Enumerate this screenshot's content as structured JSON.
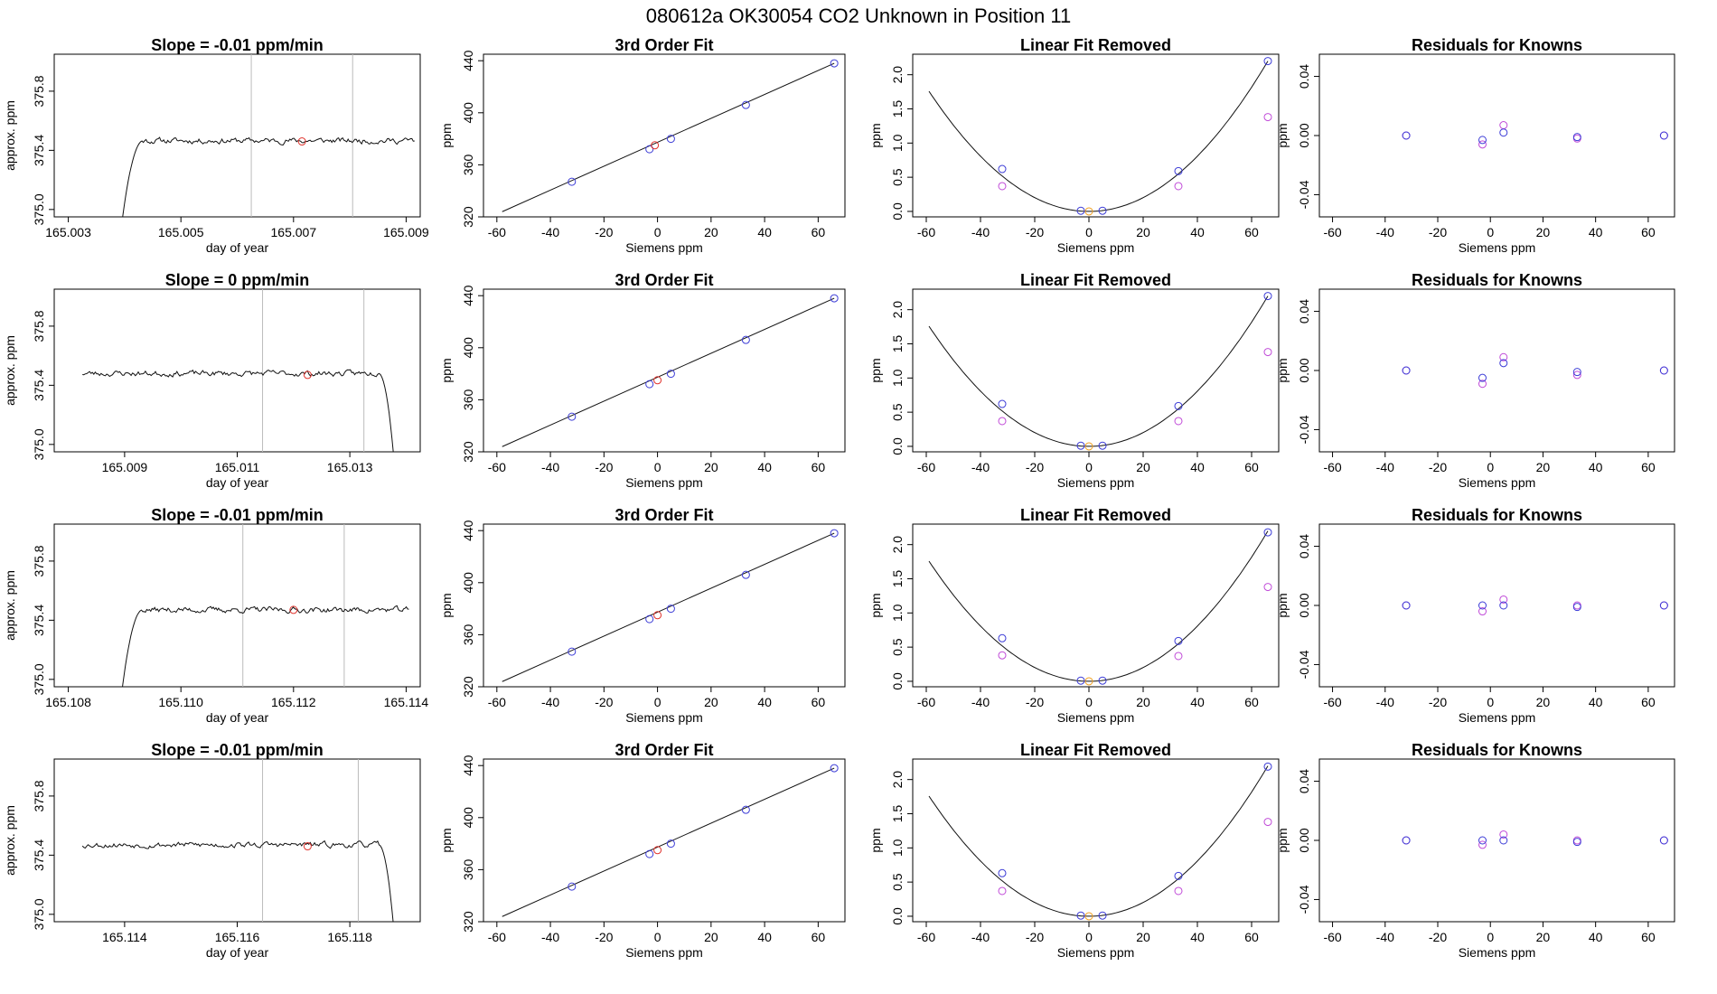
{
  "figure_title": "080612a     OK30054   CO2 Unknown in Position  11",
  "colors": {
    "unknown": "#e0332d",
    "known": "#3b3bd6",
    "raw_known": "#c04ad8",
    "unknown_raw": "#f0a020",
    "line": "#111111",
    "grid_vertical": "#bbbbbb"
  },
  "chart_data": [
    {
      "type": "line",
      "panel": "time-series",
      "row": 0,
      "title": "Slope =  -0.01  ppm/min",
      "xlabel": "day of year",
      "ylabel": "approx. ppm",
      "xlim": [
        165.00275,
        165.00925
      ],
      "ylim": [
        374.95,
        376.05
      ],
      "xticks": [
        165.003,
        165.005,
        165.007,
        165.009
      ],
      "xtick_labels": [
        "165.003",
        "165.005",
        "165.007",
        "165.009"
      ],
      "yticks": [
        375.0,
        375.4,
        375.8
      ],
      "ytick_labels": [
        "375.0",
        "375.4",
        "375.8"
      ],
      "vlines": [
        165.00625,
        165.00805
      ],
      "marker": {
        "x": 165.00715,
        "y": 375.46
      },
      "trace": {
        "x_start": 165.00385,
        "x_end": 165.00915,
        "drop_side": "start",
        "level": 375.465,
        "noise": 0.015,
        "seed": 11
      }
    },
    {
      "type": "line",
      "panel": "time-series",
      "row": 1,
      "title": "Slope =  0  ppm/min",
      "xlabel": "day of year",
      "ylabel": "approx. ppm",
      "xlim": [
        165.00775,
        165.01425
      ],
      "ylim": [
        374.95,
        376.05
      ],
      "xticks": [
        165.009,
        165.011,
        165.013
      ],
      "xtick_labels": [
        "165.009",
        "165.011",
        "165.013"
      ],
      "yticks": [
        375.0,
        375.4,
        375.8
      ],
      "ytick_labels": [
        "375.0",
        "375.4",
        "375.8"
      ],
      "vlines": [
        165.01145,
        165.01325
      ],
      "marker": {
        "x": 165.01225,
        "y": 375.47
      },
      "trace": {
        "x_start": 165.00825,
        "x_end": 165.01385,
        "drop_side": "end",
        "level": 375.48,
        "noise": 0.015,
        "seed": 23
      }
    },
    {
      "type": "line",
      "panel": "time-series",
      "row": 2,
      "title": "Slope =  -0.01  ppm/min",
      "xlabel": "day of year",
      "ylabel": "approx. ppm",
      "xlim": [
        165.10775,
        165.11425
      ],
      "ylim": [
        374.95,
        376.05
      ],
      "xticks": [
        165.108,
        165.11,
        165.112,
        165.114
      ],
      "xtick_labels": [
        "165.108",
        "165.110",
        "165.112",
        "165.114"
      ],
      "yticks": [
        375.0,
        375.4,
        375.8
      ],
      "ytick_labels": [
        "375.0",
        "375.4",
        "375.8"
      ],
      "vlines": [
        165.1111,
        165.1129
      ],
      "marker": {
        "x": 165.112,
        "y": 375.47
      },
      "trace": {
        "x_start": 165.10885,
        "x_end": 165.11405,
        "drop_side": "start",
        "level": 375.47,
        "noise": 0.015,
        "seed": 37
      }
    },
    {
      "type": "line",
      "panel": "time-series",
      "row": 3,
      "title": "Slope =  -0.01  ppm/min",
      "xlabel": "day of year",
      "ylabel": "approx. ppm",
      "xlim": [
        165.11275,
        165.11925
      ],
      "ylim": [
        374.95,
        376.05
      ],
      "xticks": [
        165.114,
        165.116,
        165.118
      ],
      "xtick_labels": [
        "165.114",
        "165.116",
        "165.118"
      ],
      "yticks": [
        375.0,
        375.4,
        375.8
      ],
      "ytick_labels": [
        "375.0",
        "375.4",
        "375.8"
      ],
      "vlines": [
        165.11645,
        165.11815
      ],
      "marker": {
        "x": 165.11725,
        "y": 375.46
      },
      "trace": {
        "x_start": 165.11325,
        "x_end": 165.11885,
        "drop_side": "end",
        "level": 375.47,
        "noise": 0.015,
        "seed": 53
      }
    },
    {
      "type": "scatter",
      "panel": "cubic-fit",
      "row": 0,
      "title": "3rd Order Fit",
      "xlabel": "Siemens ppm",
      "ylabel": "ppm",
      "xlim": [
        -65,
        70
      ],
      "ylim": [
        320,
        445
      ],
      "xticks": [
        -60,
        -40,
        -20,
        0,
        20,
        40,
        60
      ],
      "xtick_labels": [
        "-60",
        "-40",
        "-20",
        "0",
        "20",
        "40",
        "60"
      ],
      "yticks": [
        320,
        360,
        400,
        440
      ],
      "ytick_labels": [
        "320",
        "360",
        "400",
        "440"
      ],
      "fit_line": {
        "x0": -58,
        "y0": 324,
        "x1": 66,
        "y1": 438
      },
      "known_points": [
        {
          "x": -32,
          "y": 347
        },
        {
          "x": -3,
          "y": 372
        },
        {
          "x": 5,
          "y": 380
        },
        {
          "x": 33,
          "y": 406
        },
        {
          "x": 66,
          "y": 438
        }
      ],
      "unknown_point": {
        "x": -1,
        "y": 375
      }
    },
    {
      "type": "scatter",
      "panel": "cubic-fit",
      "row": 1,
      "title": "3rd Order Fit",
      "xlabel": "Siemens ppm",
      "ylabel": "ppm",
      "xlim": [
        -65,
        70
      ],
      "ylim": [
        320,
        445
      ],
      "xticks": [
        -60,
        -40,
        -20,
        0,
        20,
        40,
        60
      ],
      "xtick_labels": [
        "-60",
        "-40",
        "-20",
        "0",
        "20",
        "40",
        "60"
      ],
      "yticks": [
        320,
        360,
        400,
        440
      ],
      "ytick_labels": [
        "320",
        "360",
        "400",
        "440"
      ],
      "fit_line": {
        "x0": -58,
        "y0": 324,
        "x1": 66,
        "y1": 438
      },
      "known_points": [
        {
          "x": -32,
          "y": 347
        },
        {
          "x": -3,
          "y": 372
        },
        {
          "x": 5,
          "y": 380
        },
        {
          "x": 33,
          "y": 406
        },
        {
          "x": 66,
          "y": 438
        }
      ],
      "unknown_point": {
        "x": 0,
        "y": 375
      }
    },
    {
      "type": "scatter",
      "panel": "cubic-fit",
      "row": 2,
      "title": "3rd Order Fit",
      "xlabel": "Siemens ppm",
      "ylabel": "ppm",
      "xlim": [
        -65,
        70
      ],
      "ylim": [
        320,
        445
      ],
      "xticks": [
        -60,
        -40,
        -20,
        0,
        20,
        40,
        60
      ],
      "xtick_labels": [
        "-60",
        "-40",
        "-20",
        "0",
        "20",
        "40",
        "60"
      ],
      "yticks": [
        320,
        360,
        400,
        440
      ],
      "ytick_labels": [
        "320",
        "360",
        "400",
        "440"
      ],
      "fit_line": {
        "x0": -58,
        "y0": 324,
        "x1": 66,
        "y1": 438
      },
      "known_points": [
        {
          "x": -32,
          "y": 347
        },
        {
          "x": -3,
          "y": 372
        },
        {
          "x": 5,
          "y": 380
        },
        {
          "x": 33,
          "y": 406
        },
        {
          "x": 66,
          "y": 438
        }
      ],
      "unknown_point": {
        "x": 0,
        "y": 375
      }
    },
    {
      "type": "scatter",
      "panel": "cubic-fit",
      "row": 3,
      "title": "3rd Order Fit",
      "xlabel": "Siemens ppm",
      "ylabel": "ppm",
      "xlim": [
        -65,
        70
      ],
      "ylim": [
        320,
        445
      ],
      "xticks": [
        -60,
        -40,
        -20,
        0,
        20,
        40,
        60
      ],
      "xtick_labels": [
        "-60",
        "-40",
        "-20",
        "0",
        "20",
        "40",
        "60"
      ],
      "yticks": [
        320,
        360,
        400,
        440
      ],
      "ytick_labels": [
        "320",
        "360",
        "400",
        "440"
      ],
      "fit_line": {
        "x0": -58,
        "y0": 324,
        "x1": 66,
        "y1": 438
      },
      "known_points": [
        {
          "x": -32,
          "y": 347
        },
        {
          "x": -3,
          "y": 372
        },
        {
          "x": 5,
          "y": 380
        },
        {
          "x": 33,
          "y": 406
        },
        {
          "x": 66,
          "y": 438
        }
      ],
      "unknown_point": {
        "x": 0,
        "y": 375
      }
    },
    {
      "type": "scatter",
      "panel": "linear-removed",
      "row": 0,
      "title": "Linear Fit Removed",
      "xlabel": "Siemens ppm",
      "ylabel": "ppm",
      "xlim": [
        -65,
        70
      ],
      "ylim": [
        -0.08,
        2.3
      ],
      "xticks": [
        -60,
        -40,
        -20,
        0,
        20,
        40,
        60
      ],
      "xtick_labels": [
        "-60",
        "-40",
        "-20",
        "0",
        "20",
        "40",
        "60"
      ],
      "yticks": [
        0.0,
        0.5,
        1.0,
        1.5,
        2.0
      ],
      "ytick_labels": [
        "0.0",
        "0.5",
        "1.0",
        "1.5",
        "2.0"
      ],
      "curve": {
        "a": 0.000505,
        "b": 0.0,
        "x_min": -59,
        "x_max": 66
      },
      "known_points": [
        {
          "x": -32,
          "y": 0.62
        },
        {
          "x": -3,
          "y": 0.01
        },
        {
          "x": 5,
          "y": 0.01
        },
        {
          "x": 33,
          "y": 0.59
        },
        {
          "x": 66,
          "y": 2.2
        }
      ],
      "raw_points": [
        {
          "x": -32,
          "y": 0.37
        },
        {
          "x": 33,
          "y": 0.37
        },
        {
          "x": 66,
          "y": 1.38
        }
      ],
      "unknown_point": {
        "x": 0,
        "y": 0.0
      }
    },
    {
      "type": "scatter",
      "panel": "linear-removed",
      "row": 1,
      "title": "Linear Fit Removed",
      "xlabel": "Siemens ppm",
      "ylabel": "ppm",
      "xlim": [
        -65,
        70
      ],
      "ylim": [
        -0.08,
        2.3
      ],
      "xticks": [
        -60,
        -40,
        -20,
        0,
        20,
        40,
        60
      ],
      "xtick_labels": [
        "-60",
        "-40",
        "-20",
        "0",
        "20",
        "40",
        "60"
      ],
      "yticks": [
        0.0,
        0.5,
        1.0,
        1.5,
        2.0
      ],
      "ytick_labels": [
        "0.0",
        "0.5",
        "1.0",
        "1.5",
        "2.0"
      ],
      "curve": {
        "a": 0.000505,
        "b": 0.0,
        "x_min": -59,
        "x_max": 66
      },
      "known_points": [
        {
          "x": -32,
          "y": 0.62
        },
        {
          "x": -3,
          "y": 0.01
        },
        {
          "x": 5,
          "y": 0.01
        },
        {
          "x": 33,
          "y": 0.59
        },
        {
          "x": 66,
          "y": 2.2
        }
      ],
      "raw_points": [
        {
          "x": -32,
          "y": 0.37
        },
        {
          "x": 33,
          "y": 0.37
        },
        {
          "x": 66,
          "y": 1.38
        }
      ],
      "unknown_point": {
        "x": 0,
        "y": 0.0
      }
    },
    {
      "type": "scatter",
      "panel": "linear-removed",
      "row": 2,
      "title": "Linear Fit Removed",
      "xlabel": "Siemens ppm",
      "ylabel": "ppm",
      "xlim": [
        -65,
        70
      ],
      "ylim": [
        -0.08,
        2.3
      ],
      "xticks": [
        -60,
        -40,
        -20,
        0,
        20,
        40,
        60
      ],
      "xtick_labels": [
        "-60",
        "-40",
        "-20",
        "0",
        "20",
        "40",
        "60"
      ],
      "yticks": [
        0.0,
        0.5,
        1.0,
        1.5,
        2.0
      ],
      "ytick_labels": [
        "0.0",
        "0.5",
        "1.0",
        "1.5",
        "2.0"
      ],
      "curve": {
        "a": 0.000505,
        "b": 0.0,
        "x_min": -59,
        "x_max": 66
      },
      "known_points": [
        {
          "x": -32,
          "y": 0.63
        },
        {
          "x": -3,
          "y": 0.01
        },
        {
          "x": 5,
          "y": 0.01
        },
        {
          "x": 33,
          "y": 0.59
        },
        {
          "x": 66,
          "y": 2.18
        }
      ],
      "raw_points": [
        {
          "x": -32,
          "y": 0.38
        },
        {
          "x": 33,
          "y": 0.37
        },
        {
          "x": 66,
          "y": 1.38
        }
      ],
      "unknown_point": {
        "x": 0,
        "y": 0.0
      }
    },
    {
      "type": "scatter",
      "panel": "linear-removed",
      "row": 3,
      "title": "Linear Fit Removed",
      "xlabel": "Siemens ppm",
      "ylabel": "ppm",
      "xlim": [
        -65,
        70
      ],
      "ylim": [
        -0.08,
        2.3
      ],
      "xticks": [
        -60,
        -40,
        -20,
        0,
        20,
        40,
        60
      ],
      "xtick_labels": [
        "-60",
        "-40",
        "-20",
        "0",
        "20",
        "40",
        "60"
      ],
      "yticks": [
        0.0,
        0.5,
        1.0,
        1.5,
        2.0
      ],
      "ytick_labels": [
        "0.0",
        "0.5",
        "1.0",
        "1.5",
        "2.0"
      ],
      "curve": {
        "a": 0.000505,
        "b": 0.0,
        "x_min": -59,
        "x_max": 66
      },
      "known_points": [
        {
          "x": -32,
          "y": 0.63
        },
        {
          "x": -3,
          "y": 0.01
        },
        {
          "x": 5,
          "y": 0.01
        },
        {
          "x": 33,
          "y": 0.59
        },
        {
          "x": 66,
          "y": 2.19
        }
      ],
      "raw_points": [
        {
          "x": -32,
          "y": 0.37
        },
        {
          "x": 33,
          "y": 0.37
        },
        {
          "x": 66,
          "y": 1.38
        }
      ],
      "unknown_point": {
        "x": 0,
        "y": 0.0
      }
    },
    {
      "type": "scatter",
      "panel": "residuals",
      "row": 0,
      "title": "Residuals for Knowns",
      "xlabel": "Siemens ppm",
      "ylabel": "ppm",
      "xlim": [
        -65,
        70
      ],
      "ylim": [
        -0.055,
        0.055
      ],
      "xticks": [
        -60,
        -40,
        -20,
        0,
        20,
        40,
        60
      ],
      "xtick_labels": [
        "-60",
        "-40",
        "-20",
        "0",
        "20",
        "40",
        "60"
      ],
      "yticks": [
        -0.04,
        0.0,
        0.04
      ],
      "ytick_labels": [
        "-0.04",
        "0.00",
        "0.04"
      ],
      "known_points": [
        {
          "x": -32,
          "y": 0.0
        },
        {
          "x": -3,
          "y": -0.003
        },
        {
          "x": 5,
          "y": 0.002
        },
        {
          "x": 33,
          "y": -0.001
        },
        {
          "x": 66,
          "y": 0.0
        }
      ],
      "raw_points": [
        {
          "x": -32,
          "y": 0.0
        },
        {
          "x": -3,
          "y": -0.006
        },
        {
          "x": 5,
          "y": 0.007
        },
        {
          "x": 33,
          "y": -0.002
        },
        {
          "x": 66,
          "y": 0.0
        }
      ]
    },
    {
      "type": "scatter",
      "panel": "residuals",
      "row": 1,
      "title": "Residuals for Knowns",
      "xlabel": "Siemens ppm",
      "ylabel": "ppm",
      "xlim": [
        -65,
        70
      ],
      "ylim": [
        -0.055,
        0.055
      ],
      "xticks": [
        -60,
        -40,
        -20,
        0,
        20,
        40,
        60
      ],
      "xtick_labels": [
        "-60",
        "-40",
        "-20",
        "0",
        "20",
        "40",
        "60"
      ],
      "yticks": [
        -0.04,
        0.0,
        0.04
      ],
      "ytick_labels": [
        "-0.04",
        "0.00",
        "0.04"
      ],
      "known_points": [
        {
          "x": -32,
          "y": 0.0
        },
        {
          "x": -3,
          "y": -0.005
        },
        {
          "x": 5,
          "y": 0.005
        },
        {
          "x": 33,
          "y": -0.001
        },
        {
          "x": 66,
          "y": 0.0
        }
      ],
      "raw_points": [
        {
          "x": -32,
          "y": 0.0
        },
        {
          "x": -3,
          "y": -0.009
        },
        {
          "x": 5,
          "y": 0.009
        },
        {
          "x": 33,
          "y": -0.003
        },
        {
          "x": 66,
          "y": 0.0
        }
      ]
    },
    {
      "type": "scatter",
      "panel": "residuals",
      "row": 2,
      "title": "Residuals for Knowns",
      "xlabel": "Siemens ppm",
      "ylabel": "ppm",
      "xlim": [
        -65,
        70
      ],
      "ylim": [
        -0.055,
        0.055
      ],
      "xticks": [
        -60,
        -40,
        -20,
        0,
        20,
        40,
        60
      ],
      "xtick_labels": [
        "-60",
        "-40",
        "-20",
        "0",
        "20",
        "40",
        "60"
      ],
      "yticks": [
        -0.04,
        0.0,
        0.04
      ],
      "ytick_labels": [
        "-0.04",
        "0.00",
        "0.04"
      ],
      "known_points": [
        {
          "x": -32,
          "y": 0.0
        },
        {
          "x": -3,
          "y": 0.0
        },
        {
          "x": 5,
          "y": 0.0
        },
        {
          "x": 33,
          "y": -0.001
        },
        {
          "x": 66,
          "y": 0.0
        }
      ],
      "raw_points": [
        {
          "x": -32,
          "y": 0.0
        },
        {
          "x": -3,
          "y": -0.004
        },
        {
          "x": 5,
          "y": 0.004
        },
        {
          "x": 33,
          "y": 0.0
        },
        {
          "x": 66,
          "y": 0.0
        }
      ]
    },
    {
      "type": "scatter",
      "panel": "residuals",
      "row": 3,
      "title": "Residuals for Knowns",
      "xlabel": "Siemens ppm",
      "ylabel": "ppm",
      "xlim": [
        -65,
        70
      ],
      "ylim": [
        -0.055,
        0.055
      ],
      "xticks": [
        -60,
        -40,
        -20,
        0,
        20,
        40,
        60
      ],
      "xtick_labels": [
        "-60",
        "-40",
        "-20",
        "0",
        "20",
        "40",
        "60"
      ],
      "yticks": [
        -0.04,
        0.0,
        0.04
      ],
      "ytick_labels": [
        "-0.04",
        "0.00",
        "0.04"
      ],
      "known_points": [
        {
          "x": -32,
          "y": 0.0
        },
        {
          "x": -3,
          "y": 0.0
        },
        {
          "x": 5,
          "y": 0.0
        },
        {
          "x": 33,
          "y": -0.001
        },
        {
          "x": 66,
          "y": 0.0
        }
      ],
      "raw_points": [
        {
          "x": -32,
          "y": 0.0
        },
        {
          "x": -3,
          "y": -0.003
        },
        {
          "x": 5,
          "y": 0.004
        },
        {
          "x": 33,
          "y": 0.0
        },
        {
          "x": 66,
          "y": 0.0
        }
      ]
    }
  ]
}
